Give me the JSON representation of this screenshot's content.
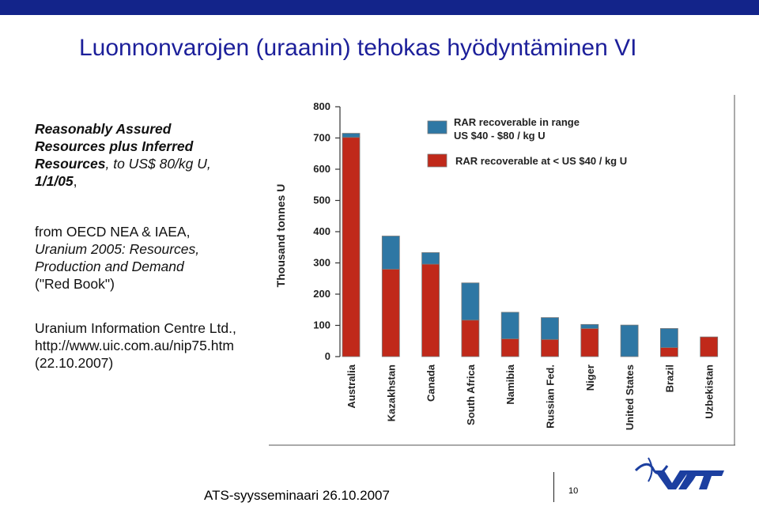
{
  "slide": {
    "title": "Luonnonvarojen (uraanin) tehokas hyödyntäminen VI",
    "description": {
      "line1": "Reasonably Assured",
      "line2": "Resources plus Inferred",
      "line3_a": "Resources",
      "line3_b": ", to US$ 80/kg U,",
      "line4_a": "1/1/05",
      "line4_b": ","
    },
    "source": {
      "line1": "from OECD NEA & IAEA,",
      "line2": "Uranium 2005: Resources,",
      "line3": "Production and Demand",
      "line4": "(\"Red Book\")"
    },
    "credit": {
      "line1": "Uranium Information Centre Ltd.,",
      "line2": "http://www.uic.com.au/nip75.htm",
      "line3": "(22.10.2007)"
    },
    "footer": "ATS-syysseminaari 26.10.2007",
    "page_number": "10",
    "logo": {
      "name": "vtt-logo",
      "text": "VTT",
      "color": "#1c3fa0"
    }
  },
  "chart_data": {
    "type": "bar",
    "stacked": true,
    "ylabel": "Thousand tonnes U",
    "ylim": [
      0,
      800
    ],
    "yticks": [
      "0",
      "100",
      "200",
      "300",
      "400",
      "500",
      "600",
      "700",
      "800"
    ],
    "categories": [
      "Australia",
      "Kazakhstan",
      "Canada",
      "South Africa",
      "Namibia",
      "Russian Fed.",
      "Niger",
      "United States",
      "Brazil",
      "Uzbekistan"
    ],
    "series": [
      {
        "name": "RAR recoverable at < US $40 / kg U",
        "color": "#c0291a",
        "values": [
          702,
          280,
          296,
          117,
          57,
          55,
          90,
          0,
          29,
          63
        ]
      },
      {
        "name": "RAR recoverable in range US $40 - $80 / kg U",
        "color": "#2e77a4",
        "values": [
          13,
          106,
          37,
          119,
          85,
          70,
          13,
          101,
          61,
          0
        ]
      }
    ],
    "legend": {
      "position": "top-right",
      "entries": [
        {
          "line1": "RAR recoverable in range",
          "line2": "US $40 - $80 / kg U",
          "color": "#2e77a4"
        },
        {
          "line1": "RAR recoverable at < US $40 / kg U",
          "line2": "",
          "color": "#c0291a"
        }
      ]
    }
  }
}
